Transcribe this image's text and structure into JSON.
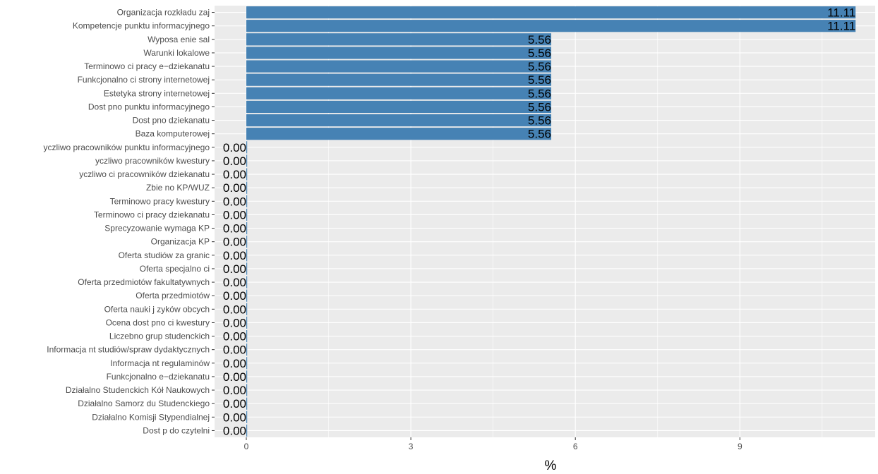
{
  "chart_data": {
    "type": "bar",
    "orientation": "horizontal",
    "xlabel": "%",
    "ylabel": "",
    "xlim": [
      0,
      11.5
    ],
    "xticks": [
      0,
      3,
      6,
      9
    ],
    "grid": true,
    "legend": "none",
    "colors": {
      "panel": "#ebebeb",
      "bar": "#4682b4",
      "grid": "#ffffff",
      "text": "#4d4d4d"
    },
    "categories": [
      "Organizacja rozkładu zaj",
      "Kompetencje punktu informacyjnego",
      "Wyposa enie sal",
      "Warunki lokalowe",
      "Terminowo ci pracy e−dziekanatu",
      "Funkcjonalno ci strony internetowej",
      "Estetyka strony internetowej",
      "Dost pno   punktu informacyjnego",
      "Dost pno   dziekanatu",
      "Baza komputerowej",
      "yczliwo   pracowników punktu informacyjnego",
      "yczliwo   pracowników kwestury",
      "yczliwo ci pracowników dziekanatu",
      "Zbie no   KP/WUZ",
      "Terminowo   pracy kwestury",
      "Terminowo ci pracy dziekanatu",
      "Sprecyzowanie wymaga  KP",
      "Organizacja KP",
      "Oferta studiów za granic",
      "Oferta specjalno ci",
      "Oferta przedmiotów fakultatywnych",
      "Oferta przedmiotów",
      "Oferta nauki j zyków obcych",
      "Ocena dost pno ci kwestury",
      "Liczebno   grup studenckich",
      "Informacja nt studiów/spraw dydaktycznych",
      "Informacja nt regulaminów",
      "Funkcjonalno   e−dziekanatu",
      "Działalno   Studenckich Kół Naukowych",
      "Działalno   Samorz du Studenckiego",
      "Działalno   Komisji Stypendialnej",
      "Dost p do czytelni"
    ],
    "values": [
      11.11,
      11.11,
      5.56,
      5.56,
      5.56,
      5.56,
      5.56,
      5.56,
      5.56,
      5.56,
      0,
      0,
      0,
      0,
      0,
      0,
      0,
      0,
      0,
      0,
      0,
      0,
      0,
      0,
      0,
      0,
      0,
      0,
      0,
      0,
      0,
      0
    ],
    "data_labels": [
      "11.11",
      "11.11",
      "5.56",
      "5.56",
      "5.56",
      "5.56",
      "5.56",
      "5.56",
      "5.56",
      "5.56",
      "0.00",
      "0.00",
      "0.00",
      "0.00",
      "0.00",
      "0.00",
      "0.00",
      "0.00",
      "0.00",
      "0.00",
      "0.00",
      "0.00",
      "0.00",
      "0.00",
      "0.00",
      "0.00",
      "0.00",
      "0.00",
      "0.00",
      "0.00",
      "0.00",
      "0.00"
    ]
  }
}
